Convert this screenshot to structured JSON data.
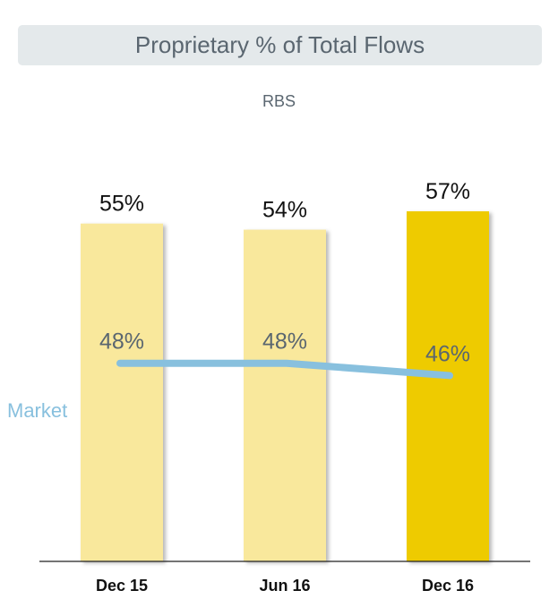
{
  "title": "Proprietary % of Total Flows",
  "subtitle": "RBS",
  "colors": {
    "title_bg": "#e4e9eb",
    "title_text": "#5a6670",
    "bar_light": "#f9e89c",
    "bar_highlight": "#eecb00",
    "market_line": "#88c0de",
    "axis": "#222222",
    "market_label_text": "#5a6670",
    "market_legend": "#88c0de"
  },
  "chart_data": {
    "type": "bar",
    "categories": [
      "Dec 15",
      "Jun 16",
      "Dec 16"
    ],
    "series": [
      {
        "values": [
          55,
          54,
          57
        ],
        "labels": [
          "55%",
          "54%",
          "57%"
        ],
        "highlight_index": 2
      },
      {
        "name": "Market",
        "type": "line",
        "values": [
          48,
          48,
          46
        ],
        "labels": [
          "48%",
          "48%",
          "46%"
        ]
      }
    ],
    "ylim": [
      0,
      62
    ],
    "grid": false
  }
}
